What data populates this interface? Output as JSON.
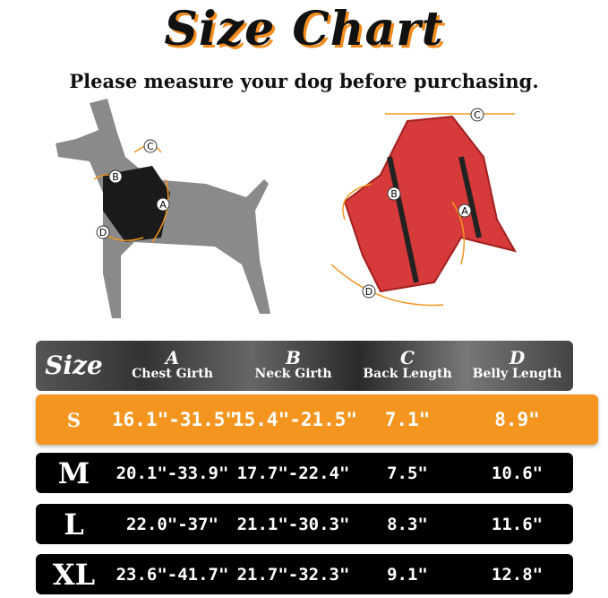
{
  "title": "Size Chart",
  "subtitle": "Please measure your dog before purchasing.",
  "diagram_labels": [
    "A",
    "B",
    "C",
    "D"
  ],
  "colors": {
    "accent": "#f3951f",
    "row": "#000000",
    "harness": "#d63a3a"
  },
  "table": {
    "headers": [
      {
        "letter": "",
        "label": "Size"
      },
      {
        "letter": "A",
        "label": "Chest Girth"
      },
      {
        "letter": "B",
        "label": "Neck Girth"
      },
      {
        "letter": "C",
        "label": "Back Length"
      },
      {
        "letter": "D",
        "label": "Belly Length"
      }
    ],
    "rows": [
      [
        "S",
        "16.1\"-31.5\"",
        "15.4\"-21.5\"",
        "7.1\"",
        "8.9\""
      ],
      [
        "M",
        "20.1\"-33.9\"",
        "17.7\"-22.4\"",
        "7.5\"",
        "10.6\""
      ],
      [
        "L",
        "22.0\"-37\"",
        "21.1\"-30.3\"",
        "8.3\"",
        "11.6\""
      ],
      [
        "XL",
        "23.6\"-41.7\"",
        "21.7\"-32.3\"",
        "9.1\"",
        "12.8\""
      ]
    ],
    "highlighted_row": "S"
  }
}
